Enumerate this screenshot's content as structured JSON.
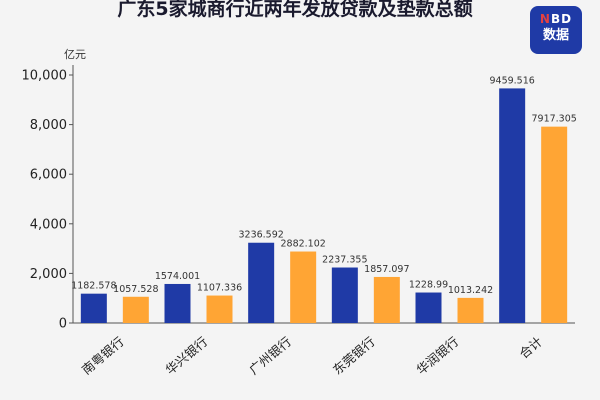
{
  "header": {
    "title": "广东5家城商行近两年发放贷款及垫款总额",
    "logo_top_accent": "N",
    "logo_top": "BD",
    "logo_bottom": "数据"
  },
  "colors": {
    "series_2022": "#1f3aa6",
    "series_2021": "#ffa534",
    "background": "#f4f4f4"
  },
  "chart_data": {
    "type": "bar",
    "ylabel": "亿元",
    "ylim": [
      0,
      10000
    ],
    "yticks": [
      0,
      2000,
      4000,
      6000,
      8000,
      10000
    ],
    "ytick_labels": [
      "0",
      "2,000",
      "4,000",
      "6,000",
      "8,000",
      "10,000"
    ],
    "categories": [
      "南粤银行",
      "华兴银行",
      "广州银行",
      "东莞银行",
      "华润银行",
      "合计"
    ],
    "series": [
      {
        "values": [
          1182.578,
          1574.001,
          3236.592,
          2237.355,
          1228.99,
          9459.516
        ],
        "labels": [
          "1182.578",
          "1574.001",
          "3236.592",
          "2237.355",
          "1228.99",
          "9459.516"
        ]
      },
      {
        "values": [
          1057.528,
          1107.336,
          2882.102,
          1857.097,
          1013.242,
          7917.305
        ],
        "labels": [
          "1057.528",
          "1107.336",
          "2882.102",
          "1857.097",
          "1013.242",
          "7917.305"
        ]
      }
    ],
    "grid": false
  }
}
